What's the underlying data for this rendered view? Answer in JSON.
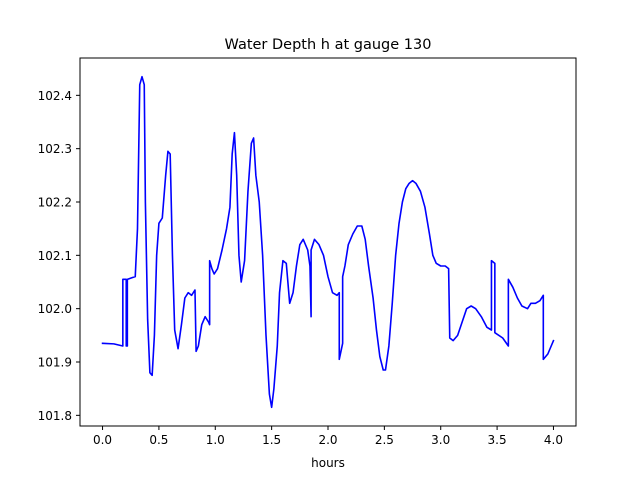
{
  "chart_data": {
    "type": "line",
    "title": "Water Depth h at gauge 130",
    "xlabel": "hours",
    "ylabel": "",
    "xlim": [
      -0.2,
      4.2
    ],
    "ylim": [
      101.78,
      102.47
    ],
    "xticks": [
      0.0,
      0.5,
      1.0,
      1.5,
      2.0,
      2.5,
      3.0,
      3.5,
      4.0
    ],
    "xtick_labels": [
      "0.0",
      "0.5",
      "1.0",
      "1.5",
      "2.0",
      "2.5",
      "3.0",
      "3.5",
      "4.0"
    ],
    "yticks": [
      101.8,
      101.9,
      102.0,
      102.1,
      102.2,
      102.3,
      102.4
    ],
    "ytick_labels": [
      "101.8",
      "101.9",
      "102.0",
      "102.1",
      "102.2",
      "102.3",
      "102.4"
    ],
    "grid": false,
    "legend": "none",
    "series": [
      {
        "color": "#0000ff",
        "points": [
          [
            0.0,
            101.935
          ],
          [
            0.1,
            101.934
          ],
          [
            0.18,
            101.93
          ],
          [
            0.18,
            102.055
          ],
          [
            0.21,
            102.055
          ],
          [
            0.21,
            101.93
          ],
          [
            0.22,
            101.93
          ],
          [
            0.22,
            102.055
          ],
          [
            0.26,
            102.058
          ],
          [
            0.29,
            102.06
          ],
          [
            0.31,
            102.15
          ],
          [
            0.33,
            102.42
          ],
          [
            0.35,
            102.435
          ],
          [
            0.37,
            102.42
          ],
          [
            0.38,
            102.2
          ],
          [
            0.4,
            101.98
          ],
          [
            0.42,
            101.88
          ],
          [
            0.44,
            101.875
          ],
          [
            0.46,
            101.95
          ],
          [
            0.48,
            102.1
          ],
          [
            0.5,
            102.16
          ],
          [
            0.53,
            102.17
          ],
          [
            0.56,
            102.25
          ],
          [
            0.58,
            102.295
          ],
          [
            0.6,
            102.29
          ],
          [
            0.62,
            102.1
          ],
          [
            0.64,
            101.96
          ],
          [
            0.67,
            101.925
          ],
          [
            0.7,
            101.97
          ],
          [
            0.73,
            102.02
          ],
          [
            0.76,
            102.03
          ],
          [
            0.79,
            102.025
          ],
          [
            0.82,
            102.035
          ],
          [
            0.83,
            101.92
          ],
          [
            0.85,
            101.93
          ],
          [
            0.88,
            101.97
          ],
          [
            0.91,
            101.985
          ],
          [
            0.94,
            101.975
          ],
          [
            0.95,
            101.97
          ],
          [
            0.95,
            102.09
          ],
          [
            0.97,
            102.075
          ],
          [
            0.99,
            102.065
          ],
          [
            1.02,
            102.075
          ],
          [
            1.06,
            102.11
          ],
          [
            1.1,
            102.15
          ],
          [
            1.13,
            102.19
          ],
          [
            1.15,
            102.29
          ],
          [
            1.17,
            102.33
          ],
          [
            1.19,
            102.25
          ],
          [
            1.21,
            102.1
          ],
          [
            1.23,
            102.05
          ],
          [
            1.26,
            102.09
          ],
          [
            1.29,
            102.22
          ],
          [
            1.32,
            102.31
          ],
          [
            1.34,
            102.32
          ],
          [
            1.36,
            102.25
          ],
          [
            1.39,
            102.2
          ],
          [
            1.42,
            102.1
          ],
          [
            1.45,
            101.95
          ],
          [
            1.48,
            101.84
          ],
          [
            1.5,
            101.815
          ],
          [
            1.52,
            101.85
          ],
          [
            1.55,
            101.93
          ],
          [
            1.57,
            102.03
          ],
          [
            1.6,
            102.09
          ],
          [
            1.63,
            102.085
          ],
          [
            1.66,
            102.01
          ],
          [
            1.69,
            102.03
          ],
          [
            1.72,
            102.08
          ],
          [
            1.75,
            102.12
          ],
          [
            1.78,
            102.13
          ],
          [
            1.82,
            102.11
          ],
          [
            1.84,
            102.08
          ],
          [
            1.85,
            101.985
          ],
          [
            1.85,
            102.11
          ],
          [
            1.88,
            102.13
          ],
          [
            1.92,
            102.12
          ],
          [
            1.96,
            102.1
          ],
          [
            2.0,
            102.06
          ],
          [
            2.04,
            102.03
          ],
          [
            2.08,
            102.025
          ],
          [
            2.1,
            102.03
          ],
          [
            2.1,
            101.905
          ],
          [
            2.13,
            101.935
          ],
          [
            2.13,
            102.06
          ],
          [
            2.15,
            102.08
          ],
          [
            2.18,
            102.12
          ],
          [
            2.22,
            102.14
          ],
          [
            2.26,
            102.155
          ],
          [
            2.3,
            102.155
          ],
          [
            2.33,
            102.13
          ],
          [
            2.36,
            102.08
          ],
          [
            2.4,
            102.02
          ],
          [
            2.43,
            101.96
          ],
          [
            2.46,
            101.91
          ],
          [
            2.49,
            101.885
          ],
          [
            2.51,
            101.885
          ],
          [
            2.54,
            101.93
          ],
          [
            2.57,
            102.01
          ],
          [
            2.6,
            102.1
          ],
          [
            2.63,
            102.16
          ],
          [
            2.66,
            102.2
          ],
          [
            2.69,
            102.225
          ],
          [
            2.72,
            102.235
          ],
          [
            2.75,
            102.24
          ],
          [
            2.78,
            102.235
          ],
          [
            2.82,
            102.22
          ],
          [
            2.86,
            102.19
          ],
          [
            2.9,
            102.14
          ],
          [
            2.93,
            102.1
          ],
          [
            2.96,
            102.085
          ],
          [
            3.0,
            102.08
          ],
          [
            3.04,
            102.08
          ],
          [
            3.07,
            102.075
          ],
          [
            3.08,
            101.945
          ],
          [
            3.11,
            101.94
          ],
          [
            3.15,
            101.95
          ],
          [
            3.19,
            101.975
          ],
          [
            3.23,
            102.0
          ],
          [
            3.27,
            102.005
          ],
          [
            3.31,
            102.0
          ],
          [
            3.36,
            101.985
          ],
          [
            3.41,
            101.965
          ],
          [
            3.45,
            101.96
          ],
          [
            3.45,
            102.09
          ],
          [
            3.48,
            102.085
          ],
          [
            3.48,
            101.955
          ],
          [
            3.55,
            101.945
          ],
          [
            3.6,
            101.93
          ],
          [
            3.6,
            102.055
          ],
          [
            3.64,
            102.04
          ],
          [
            3.68,
            102.02
          ],
          [
            3.72,
            102.005
          ],
          [
            3.77,
            102.0
          ],
          [
            3.8,
            102.01
          ],
          [
            3.84,
            102.01
          ],
          [
            3.88,
            102.015
          ],
          [
            3.91,
            102.025
          ],
          [
            3.91,
            101.905
          ],
          [
            3.95,
            101.915
          ],
          [
            3.98,
            101.93
          ],
          [
            4.0,
            101.94
          ]
        ]
      }
    ]
  }
}
